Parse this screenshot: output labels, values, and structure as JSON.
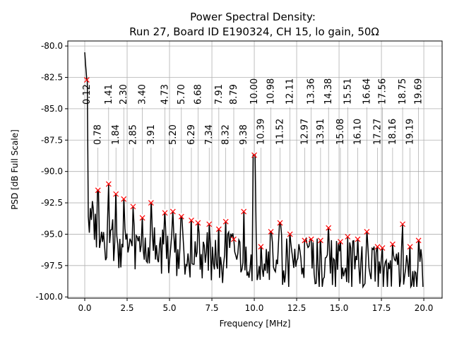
{
  "chart_data": {
    "type": "line",
    "title": "Power Spectral Density:",
    "subtitle": "Run 27, Board ID E190324, CH 15, lo gain, 50Ω",
    "xlabel": "Frequency [MHz]",
    "ylabel": "PSD [dB Full Scale]",
    "xlim": [
      -1.0,
      21.08
    ],
    "ylim": [
      -100.1,
      -79.6
    ],
    "grid": true,
    "xticks": [
      "0.0",
      "2.5",
      "5.0",
      "7.5",
      "10.0",
      "12.5",
      "15.0",
      "17.5",
      "20.0"
    ],
    "yticks": [
      "-80.0",
      "-82.5",
      "-85.0",
      "-87.5",
      "-90.0",
      "-92.5",
      "-95.0",
      "-97.5",
      "-100.0"
    ],
    "line_color": "#000000",
    "marker_color": "#ff0000",
    "peaks": [
      {
        "x": 0.12,
        "y": -82.7,
        "label": "0.12"
      },
      {
        "x": 0.78,
        "y": -91.5,
        "label": "0.78"
      },
      {
        "x": 1.41,
        "y": -91.0,
        "label": "1.41"
      },
      {
        "x": 1.84,
        "y": -91.8,
        "label": "1.84"
      },
      {
        "x": 2.3,
        "y": -92.2,
        "label": "2.30"
      },
      {
        "x": 2.85,
        "y": -92.8,
        "label": "2.85"
      },
      {
        "x": 3.4,
        "y": -93.7,
        "label": "3.40"
      },
      {
        "x": 3.91,
        "y": -92.5,
        "label": "3.91"
      },
      {
        "x": 4.73,
        "y": -93.3,
        "label": "4.73"
      },
      {
        "x": 5.2,
        "y": -93.2,
        "label": "5.20"
      },
      {
        "x": 5.7,
        "y": -93.6,
        "label": "5.70"
      },
      {
        "x": 6.29,
        "y": -93.9,
        "label": "6.29"
      },
      {
        "x": 6.68,
        "y": -94.1,
        "label": "6.68"
      },
      {
        "x": 7.34,
        "y": -94.2,
        "label": "7.34"
      },
      {
        "x": 7.91,
        "y": -94.6,
        "label": "7.91"
      },
      {
        "x": 8.32,
        "y": -94.0,
        "label": "8.32"
      },
      {
        "x": 8.79,
        "y": -95.4,
        "label": "8.79"
      },
      {
        "x": 9.38,
        "y": -93.2,
        "label": "9.38"
      },
      {
        "x": 10.0,
        "y": -88.7,
        "label": "10.00"
      },
      {
        "x": 10.39,
        "y": -96.0,
        "label": "10.39"
      },
      {
        "x": 10.98,
        "y": -94.8,
        "label": "10.98"
      },
      {
        "x": 11.52,
        "y": -94.1,
        "label": "11.52"
      },
      {
        "x": 12.11,
        "y": -95.0,
        "label": "12.11"
      },
      {
        "x": 12.97,
        "y": -95.5,
        "label": "12.97"
      },
      {
        "x": 13.36,
        "y": -95.4,
        "label": "13.36"
      },
      {
        "x": 13.91,
        "y": -95.5,
        "label": "13.91"
      },
      {
        "x": 14.38,
        "y": -94.5,
        "label": "14.38"
      },
      {
        "x": 15.08,
        "y": -95.6,
        "label": "15.08"
      },
      {
        "x": 15.51,
        "y": -95.2,
        "label": "15.51"
      },
      {
        "x": 16.1,
        "y": -95.4,
        "label": "16.10"
      },
      {
        "x": 16.64,
        "y": -94.8,
        "label": "16.64"
      },
      {
        "x": 17.27,
        "y": -96.0,
        "label": "17.27"
      },
      {
        "x": 17.56,
        "y": -96.1,
        "label": "17.56"
      },
      {
        "x": 18.16,
        "y": -95.8,
        "label": "18.16"
      },
      {
        "x": 18.75,
        "y": -94.2,
        "label": "18.75"
      },
      {
        "x": 19.19,
        "y": -96.0,
        "label": "19.19"
      },
      {
        "x": 19.69,
        "y": -95.5,
        "label": "19.69"
      }
    ]
  }
}
